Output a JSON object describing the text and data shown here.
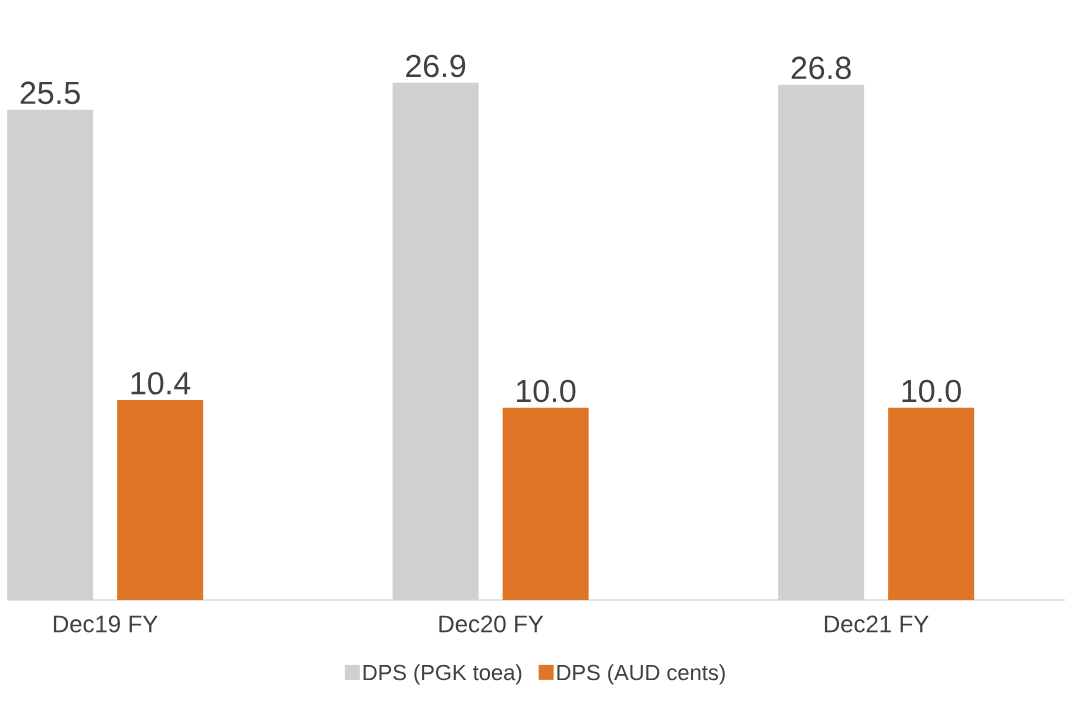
{
  "chart_data": {
    "type": "bar",
    "categories": [
      "Dec19 FY",
      "Dec20 FY",
      "Dec21  FY"
    ],
    "series": [
      {
        "name": "DPS  (PGK toea)",
        "color": "#d0d0d0",
        "values": [
          25.5,
          26.9,
          26.8
        ],
        "value_labels": [
          "25.5",
          "26.9",
          "26.8"
        ]
      },
      {
        "name": "DPS (AUD cents)",
        "color": "#e07427",
        "values": [
          10.4,
          10.0,
          10.0
        ],
        "value_labels": [
          "10.4",
          "10.0",
          "10.0"
        ]
      }
    ],
    "legend": "bottom"
  }
}
